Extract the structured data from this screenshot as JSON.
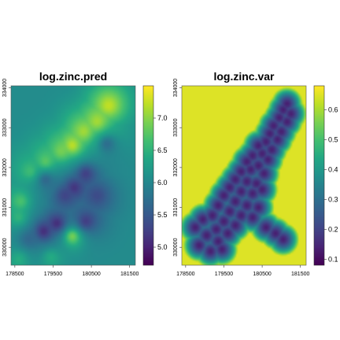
{
  "chart_data": [
    {
      "type": "heatmap",
      "title": "log.zinc.pred",
      "xlim": [
        178400,
        181650
      ],
      "ylim": [
        329550,
        334050
      ],
      "x_ticks": [
        178500,
        179500,
        180500,
        181500
      ],
      "y_ticks": [
        330000,
        331000,
        332000,
        333000,
        334000
      ],
      "x_tick_labels": [
        "178500",
        "179500",
        "180500",
        "181500"
      ],
      "y_tick_labels": [
        "330000",
        "331000",
        "332000",
        "333000",
        "334000"
      ],
      "colorbar": {
        "palette": "viridis",
        "range": [
          4.72,
          7.5
        ],
        "ticks": [
          5.0,
          5.5,
          6.0,
          6.5,
          7.0
        ],
        "tick_labels": [
          "5.0",
          "5.5",
          "6.0",
          "6.5",
          "7.0"
        ]
      },
      "background_value": 6.05,
      "features": [
        {
          "kind": "high",
          "x": 180950,
          "y": 333550,
          "value": 7.3
        },
        {
          "kind": "high",
          "x": 180650,
          "y": 333150,
          "value": 7.2
        },
        {
          "kind": "high",
          "x": 180300,
          "y": 332900,
          "value": 7.2
        },
        {
          "kind": "high",
          "x": 180000,
          "y": 332550,
          "value": 7.4
        },
        {
          "kind": "high",
          "x": 179700,
          "y": 332400,
          "value": 7.0
        },
        {
          "kind": "high",
          "x": 179300,
          "y": 332150,
          "value": 6.9
        },
        {
          "kind": "high",
          "x": 178900,
          "y": 331900,
          "value": 6.7
        },
        {
          "kind": "high",
          "x": 178650,
          "y": 331150,
          "value": 6.8
        },
        {
          "kind": "high",
          "x": 178600,
          "y": 330750,
          "value": 6.6
        },
        {
          "kind": "high",
          "x": 180000,
          "y": 330280,
          "value": 7.2
        },
        {
          "kind": "high",
          "x": 179450,
          "y": 329750,
          "value": 6.5
        },
        {
          "kind": "high",
          "x": 178600,
          "y": 329700,
          "value": 6.5
        },
        {
          "kind": "low",
          "x": 180050,
          "y": 331500,
          "value": 5.0
        },
        {
          "kind": "low",
          "x": 180350,
          "y": 331850,
          "value": 5.1
        },
        {
          "kind": "low",
          "x": 179800,
          "y": 331300,
          "value": 5.2
        },
        {
          "kind": "low",
          "x": 179600,
          "y": 330600,
          "value": 4.9
        },
        {
          "kind": "low",
          "x": 179250,
          "y": 330400,
          "value": 4.9
        },
        {
          "kind": "low",
          "x": 180350,
          "y": 330650,
          "value": 5.1
        },
        {
          "kind": "low",
          "x": 180650,
          "y": 331300,
          "value": 5.3
        },
        {
          "kind": "low",
          "x": 180900,
          "y": 332600,
          "value": 5.6
        },
        {
          "kind": "low",
          "x": 179300,
          "y": 331700,
          "value": 5.5
        },
        {
          "kind": "low",
          "x": 178850,
          "y": 330200,
          "value": 5.6
        }
      ]
    },
    {
      "type": "heatmap",
      "title": "log.zinc.var",
      "xlim": [
        178400,
        181650
      ],
      "ylim": [
        329550,
        334050
      ],
      "x_ticks": [
        178500,
        179500,
        180500,
        181500
      ],
      "y_ticks": [
        330000,
        331000,
        332000,
        333000,
        334000
      ],
      "x_tick_labels": [
        "178500",
        "179500",
        "180500",
        "181500"
      ],
      "y_tick_labels": [
        "330000",
        "331000",
        "332000",
        "333000",
        "334000"
      ],
      "colorbar": {
        "palette": "viridis",
        "range": [
          0.08,
          0.68
        ],
        "ticks": [
          0.1,
          0.2,
          0.3,
          0.4,
          0.5,
          0.6
        ],
        "tick_labels": [
          "0.1",
          "0.2",
          "0.3",
          "0.4",
          "0.5",
          "0.6"
        ]
      },
      "background_value": 0.65,
      "floor_value": 0.13,
      "sample_points": [
        [
          181150,
          333600
        ],
        [
          181050,
          333450
        ],
        [
          181250,
          333350
        ],
        [
          180950,
          333250
        ],
        [
          181150,
          333150
        ],
        [
          180800,
          333050
        ],
        [
          181000,
          332900
        ],
        [
          180700,
          332850
        ],
        [
          180900,
          332700
        ],
        [
          180600,
          332650
        ],
        [
          180400,
          332550
        ],
        [
          180750,
          332450
        ],
        [
          180500,
          332350
        ],
        [
          180250,
          332300
        ],
        [
          180650,
          332200
        ],
        [
          180100,
          332150
        ],
        [
          180400,
          332050
        ],
        [
          180200,
          331950
        ],
        [
          179950,
          331900
        ],
        [
          180550,
          331850
        ],
        [
          179800,
          331700
        ],
        [
          180100,
          331650
        ],
        [
          180350,
          331600
        ],
        [
          179650,
          331500
        ],
        [
          179950,
          331400
        ],
        [
          180250,
          331350
        ],
        [
          180500,
          331450
        ],
        [
          179500,
          331300
        ],
        [
          179800,
          331150
        ],
        [
          180100,
          331050
        ],
        [
          180400,
          331000
        ],
        [
          179350,
          331050
        ],
        [
          179650,
          330900
        ],
        [
          179950,
          330800
        ],
        [
          180250,
          330750
        ],
        [
          179200,
          330800
        ],
        [
          179500,
          330650
        ],
        [
          179800,
          330550
        ],
        [
          178950,
          330700
        ],
        [
          179300,
          330450
        ],
        [
          179600,
          330350
        ],
        [
          178750,
          330500
        ],
        [
          179050,
          330300
        ],
        [
          179350,
          330150
        ],
        [
          178850,
          330050
        ],
        [
          179150,
          329900
        ],
        [
          179450,
          329950
        ],
        [
          180600,
          330500
        ],
        [
          180850,
          330350
        ],
        [
          181050,
          330200
        ]
      ]
    }
  ]
}
